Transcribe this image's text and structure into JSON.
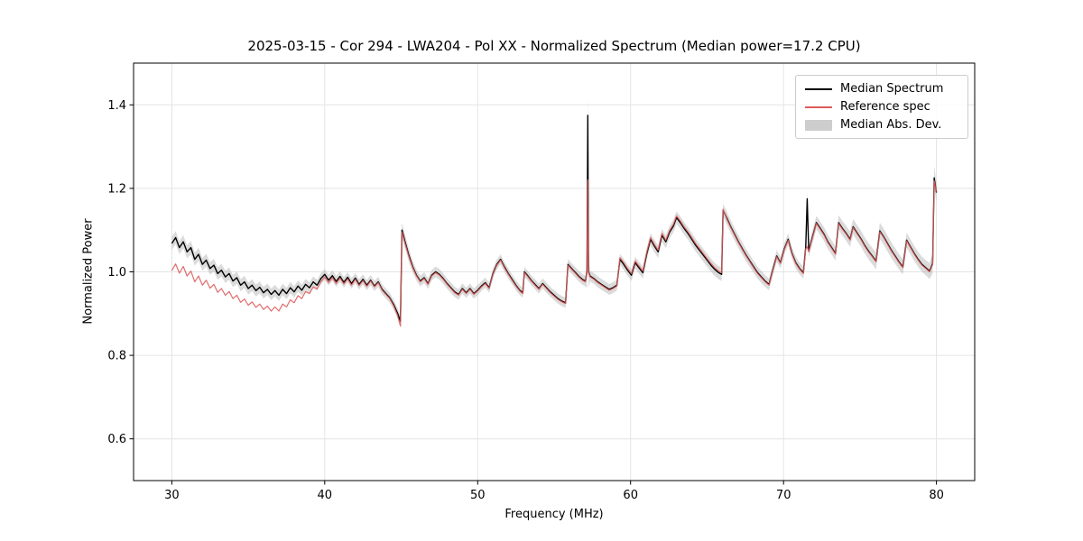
{
  "figure": {
    "title": "2025-03-15 - Cor 294 - LWA204 - Pol XX - Normalized Spectrum (Median power=17.2 CPU)",
    "xlabel": "Frequency (MHz)",
    "ylabel": "Normalized Power"
  },
  "legend": {
    "items": [
      {
        "label": "Median Spectrum",
        "type": "line",
        "color": "#000000"
      },
      {
        "label": "Reference spec",
        "type": "line",
        "color": "#dd5c5c"
      },
      {
        "label": "Median Abs. Dev.",
        "type": "patch",
        "color": "#c4c4c4"
      }
    ]
  },
  "chart_data": {
    "type": "line",
    "title": "2025-03-15 - Cor 294 - LWA204 - Pol XX - Normalized Spectrum (Median power=17.2 CPU)",
    "xlabel": "Frequency (MHz)",
    "ylabel": "Normalized Power",
    "xlim": [
      27.5,
      82.5
    ],
    "ylim": [
      0.5,
      1.5
    ],
    "xticks": [
      30,
      40,
      50,
      60,
      70,
      80
    ],
    "yticks": [
      0.6,
      0.8,
      1.0,
      1.2,
      1.4
    ],
    "grid": true,
    "x": [
      30.0,
      30.25,
      30.5,
      30.75,
      31.0,
      31.25,
      31.5,
      31.75,
      32.0,
      32.25,
      32.5,
      32.75,
      33.0,
      33.25,
      33.5,
      33.75,
      34.0,
      34.25,
      34.5,
      34.75,
      35.0,
      35.25,
      35.5,
      35.75,
      36.0,
      36.25,
      36.5,
      36.75,
      37.0,
      37.25,
      37.5,
      37.75,
      38.0,
      38.25,
      38.5,
      38.75,
      39.0,
      39.25,
      39.5,
      39.75,
      40.0,
      40.25,
      40.5,
      40.75,
      41.0,
      41.25,
      41.5,
      41.75,
      42.0,
      42.25,
      42.5,
      42.75,
      43.0,
      43.25,
      43.5,
      43.75,
      44.0,
      44.25,
      44.5,
      44.75,
      44.95,
      45.05,
      45.25,
      45.5,
      45.75,
      46.0,
      46.25,
      46.5,
      46.75,
      47.0,
      47.25,
      47.5,
      47.75,
      48.0,
      48.25,
      48.5,
      48.75,
      49.0,
      49.25,
      49.5,
      49.75,
      50.0,
      50.25,
      50.5,
      50.75,
      51.0,
      51.25,
      51.5,
      51.75,
      52.0,
      52.25,
      52.5,
      52.75,
      52.95,
      53.05,
      53.25,
      53.5,
      53.75,
      54.0,
      54.25,
      54.5,
      54.75,
      55.0,
      55.25,
      55.5,
      55.75,
      55.9,
      56.1,
      56.35,
      56.6,
      56.85,
      57.05,
      57.15,
      57.2,
      57.25,
      57.35,
      57.6,
      57.85,
      58.1,
      58.35,
      58.6,
      58.85,
      59.1,
      59.3,
      59.55,
      59.8,
      60.05,
      60.3,
      60.55,
      60.8,
      61.05,
      61.3,
      61.55,
      61.8,
      62.05,
      62.3,
      62.55,
      62.8,
      63.0,
      63.25,
      63.5,
      63.75,
      64.0,
      64.25,
      64.5,
      64.75,
      65.0,
      65.25,
      65.5,
      65.75,
      65.95,
      66.05,
      66.3,
      66.55,
      66.8,
      67.05,
      67.3,
      67.55,
      67.8,
      68.05,
      68.3,
      68.55,
      68.8,
      69.05,
      69.3,
      69.55,
      69.8,
      70.05,
      70.3,
      70.55,
      70.8,
      71.05,
      71.3,
      71.45,
      71.55,
      71.65,
      71.9,
      72.15,
      72.4,
      72.65,
      72.9,
      73.15,
      73.4,
      73.6,
      73.85,
      74.1,
      74.35,
      74.55,
      74.8,
      75.05,
      75.3,
      75.55,
      75.8,
      76.05,
      76.3,
      76.55,
      76.8,
      77.05,
      77.3,
      77.55,
      77.8,
      78.05,
      78.3,
      78.55,
      78.8,
      79.05,
      79.3,
      79.55,
      79.75,
      79.85,
      80.0
    ],
    "series": [
      {
        "name": "Median Spectrum",
        "color": "#000000",
        "values": [
          1.068,
          1.082,
          1.058,
          1.072,
          1.048,
          1.058,
          1.03,
          1.042,
          1.018,
          1.028,
          1.008,
          1.016,
          0.996,
          1.004,
          0.988,
          0.996,
          0.978,
          0.986,
          0.968,
          0.976,
          0.96,
          0.968,
          0.955,
          0.963,
          0.95,
          0.958,
          0.946,
          0.955,
          0.944,
          0.958,
          0.948,
          0.962,
          0.952,
          0.966,
          0.956,
          0.97,
          0.962,
          0.976,
          0.968,
          0.984,
          0.994,
          0.98,
          0.991,
          0.977,
          0.989,
          0.975,
          0.987,
          0.972,
          0.985,
          0.97,
          0.982,
          0.968,
          0.98,
          0.966,
          0.976,
          0.958,
          0.948,
          0.938,
          0.922,
          0.902,
          0.882,
          1.1,
          1.072,
          1.04,
          1.012,
          0.992,
          0.978,
          0.986,
          0.972,
          0.992,
          1.0,
          0.994,
          0.984,
          0.972,
          0.962,
          0.952,
          0.946,
          0.96,
          0.95,
          0.96,
          0.948,
          0.956,
          0.966,
          0.974,
          0.962,
          0.996,
          1.018,
          1.03,
          1.012,
          0.996,
          0.982,
          0.968,
          0.956,
          0.95,
          1.0,
          0.992,
          0.98,
          0.97,
          0.96,
          0.972,
          0.962,
          0.952,
          0.944,
          0.936,
          0.93,
          0.926,
          1.018,
          1.01,
          1.0,
          0.99,
          0.982,
          0.978,
          1.0,
          1.375,
          1.0,
          0.99,
          0.984,
          0.976,
          0.97,
          0.964,
          0.958,
          0.962,
          0.968,
          1.03,
          1.018,
          1.004,
          0.992,
          1.022,
          1.01,
          0.998,
          1.042,
          1.078,
          1.062,
          1.048,
          1.088,
          1.072,
          1.095,
          1.11,
          1.13,
          1.118,
          1.104,
          1.092,
          1.078,
          1.064,
          1.052,
          1.04,
          1.028,
          1.016,
          1.006,
          0.998,
          0.994,
          1.148,
          1.128,
          1.108,
          1.09,
          1.072,
          1.056,
          1.04,
          1.026,
          1.012,
          0.998,
          0.988,
          0.978,
          0.97,
          1.005,
          1.038,
          1.022,
          1.055,
          1.078,
          1.045,
          1.022,
          1.008,
          0.998,
          1.06,
          1.175,
          1.05,
          1.085,
          1.118,
          1.104,
          1.09,
          1.072,
          1.058,
          1.044,
          1.118,
          1.104,
          1.092,
          1.078,
          1.108,
          1.094,
          1.08,
          1.064,
          1.05,
          1.038,
          1.026,
          1.098,
          1.084,
          1.068,
          1.052,
          1.038,
          1.024,
          1.012,
          1.076,
          1.06,
          1.044,
          1.03,
          1.018,
          1.01,
          1.002,
          1.02,
          1.225,
          1.19
        ]
      },
      {
        "name": "Reference spec",
        "color": "#dd5c5c",
        "values": [
          1.003,
          1.019,
          0.997,
          1.013,
          0.99,
          1.002,
          0.976,
          0.99,
          0.968,
          0.98,
          0.961,
          0.97,
          0.951,
          0.96,
          0.944,
          0.953,
          0.936,
          0.944,
          0.927,
          0.935,
          0.92,
          0.928,
          0.915,
          0.923,
          0.91,
          0.918,
          0.906,
          0.916,
          0.906,
          0.923,
          0.916,
          0.933,
          0.926,
          0.943,
          0.936,
          0.953,
          0.948,
          0.964,
          0.959,
          0.976,
          0.988,
          0.974,
          0.986,
          0.972,
          0.985,
          0.971,
          0.983,
          0.968,
          0.982,
          0.967,
          0.979,
          0.965,
          0.978,
          0.964,
          0.974,
          0.956,
          0.946,
          0.936,
          0.919,
          0.897,
          0.87,
          1.095,
          1.068,
          1.037,
          1.01,
          0.99,
          0.976,
          0.984,
          0.97,
          0.99,
          0.998,
          0.992,
          0.982,
          0.97,
          0.96,
          0.95,
          0.944,
          0.958,
          0.948,
          0.958,
          0.946,
          0.954,
          0.964,
          0.972,
          0.96,
          0.994,
          1.016,
          1.028,
          1.01,
          0.994,
          0.98,
          0.966,
          0.954,
          0.948,
          0.998,
          0.99,
          0.978,
          0.968,
          0.958,
          0.97,
          0.96,
          0.95,
          0.942,
          0.934,
          0.928,
          0.924,
          1.016,
          1.008,
          0.998,
          0.988,
          0.98,
          0.976,
          0.998,
          1.22,
          0.998,
          0.988,
          0.982,
          0.974,
          0.968,
          0.962,
          0.956,
          0.96,
          0.966,
          1.034,
          1.022,
          1.008,
          0.996,
          1.026,
          1.014,
          1.002,
          1.046,
          1.082,
          1.066,
          1.052,
          1.092,
          1.076,
          1.099,
          1.114,
          1.134,
          1.122,
          1.108,
          1.096,
          1.082,
          1.068,
          1.056,
          1.044,
          1.032,
          1.02,
          1.01,
          1.002,
          0.998,
          1.15,
          1.126,
          1.106,
          1.088,
          1.07,
          1.054,
          1.038,
          1.024,
          1.01,
          0.996,
          0.986,
          0.976,
          0.968,
          1.003,
          1.036,
          1.02,
          1.053,
          1.076,
          1.043,
          1.02,
          1.006,
          0.996,
          1.055,
          1.06,
          1.048,
          1.083,
          1.116,
          1.102,
          1.088,
          1.07,
          1.056,
          1.042,
          1.116,
          1.102,
          1.09,
          1.076,
          1.106,
          1.092,
          1.078,
          1.062,
          1.048,
          1.036,
          1.024,
          1.096,
          1.082,
          1.066,
          1.05,
          1.036,
          1.022,
          1.01,
          1.074,
          1.058,
          1.042,
          1.028,
          1.016,
          1.008,
          1.0,
          1.018,
          1.218,
          1.192
        ]
      }
    ],
    "mad_band": {
      "applies_to": "Median Spectrum",
      "color": "#b0b0b0",
      "opacity": 0.45,
      "halfwidth_profile": [
        [
          30,
          0.016
        ],
        [
          33,
          0.015
        ],
        [
          36,
          0.014
        ],
        [
          40,
          0.013
        ],
        [
          44,
          0.012
        ],
        [
          44.95,
          0.012
        ],
        [
          45.05,
          0.018
        ],
        [
          46,
          0.013
        ],
        [
          50,
          0.012
        ],
        [
          55,
          0.012
        ],
        [
          57.05,
          0.013
        ],
        [
          57.2,
          0.05
        ],
        [
          57.35,
          0.013
        ],
        [
          59,
          0.013
        ],
        [
          62,
          0.015
        ],
        [
          64,
          0.015
        ],
        [
          66,
          0.016
        ],
        [
          69,
          0.014
        ],
        [
          71,
          0.014
        ],
        [
          72,
          0.016
        ],
        [
          74,
          0.018
        ],
        [
          76,
          0.02
        ],
        [
          78,
          0.018
        ],
        [
          79.5,
          0.018
        ],
        [
          79.85,
          0.027
        ],
        [
          80,
          0.024
        ]
      ]
    }
  }
}
